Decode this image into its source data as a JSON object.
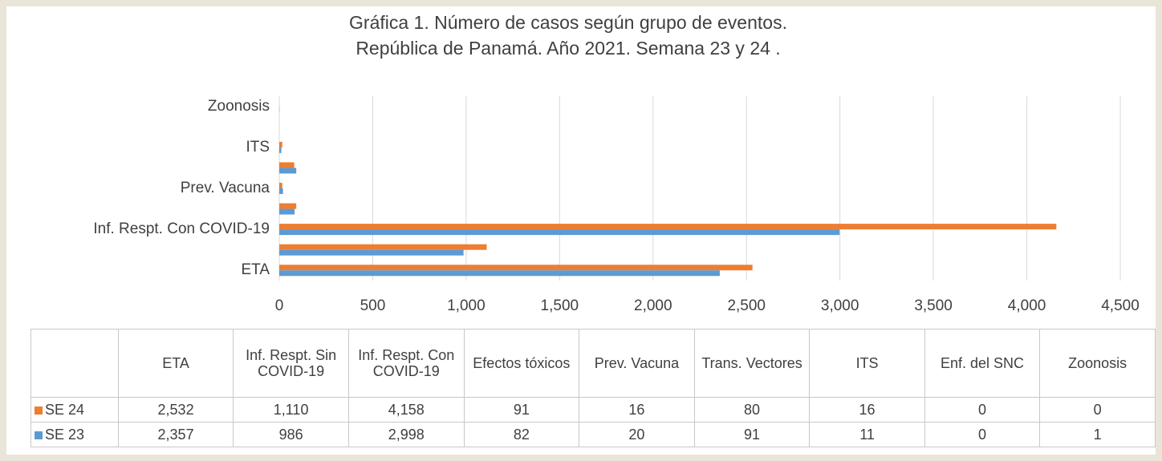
{
  "chart_data": {
    "type": "bar",
    "orientation": "horizontal",
    "title": "Gráfica 1. Número de casos según grupo de eventos.",
    "subtitle": "República de Panamá. Año 2021. Semana 23 y 24 .",
    "categories": [
      "ETA",
      "Inf.  Respt. Sin COVID-19",
      "Inf.  Respt. Con COVID-19",
      "Efectos tóxicos",
      "Prev. Vacuna",
      "Trans. Vectores",
      "ITS",
      "Enf. del SNC",
      "Zoonosis"
    ],
    "series": [
      {
        "name": "SE 24",
        "color": "#ED7D31",
        "values": [
          2532,
          1110,
          4158,
          91,
          16,
          80,
          16,
          0,
          0
        ],
        "value_labels": [
          "2,532",
          "1,110",
          "4,158",
          "91",
          "16",
          "80",
          "16",
          "0",
          "0"
        ]
      },
      {
        "name": "SE 23",
        "color": "#5B9BD5",
        "values": [
          2357,
          986,
          2998,
          82,
          20,
          91,
          11,
          0,
          1
        ],
        "value_labels": [
          "2,357",
          "986",
          "2,998",
          "82",
          "20",
          "91",
          "11",
          "0",
          "1"
        ]
      }
    ],
    "xlim": [
      0,
      4500
    ],
    "xticks": [
      0,
      500,
      {
        "value": 1000,
        "label": "1,000"
      },
      {
        "value": 1500,
        "label": "1,500"
      },
      {
        "value": 2000,
        "label": "2,000"
      },
      {
        "value": 2500,
        "label": "2,500"
      },
      {
        "value": 3000,
        "label": "3,000"
      },
      {
        "value": 3500,
        "label": "3,500"
      },
      {
        "value": 4000,
        "label": "4,000"
      },
      {
        "value": 4500,
        "label": "4,500"
      }
    ],
    "grid": true
  }
}
